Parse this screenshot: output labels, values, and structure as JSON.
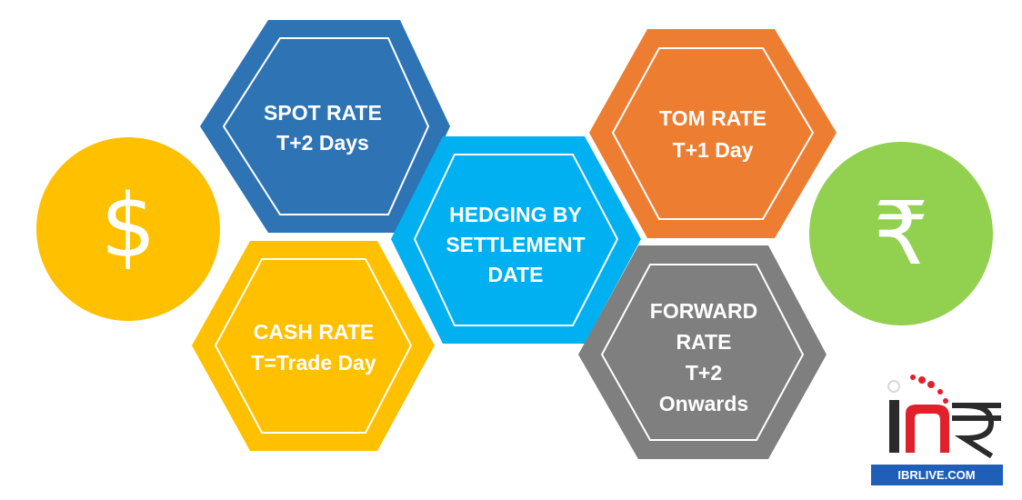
{
  "colors": {
    "spot": "#2E74B5",
    "tom": "#ED7D31",
    "center": "#00B0F0",
    "cash": "#FFC000",
    "forward": "#7F7F7F",
    "dollar_circle": "#FFC000",
    "rupee_circle": "#92D050",
    "logo_blue": "#1F5FB8",
    "logo_red": "#E0202A"
  },
  "icons": {
    "dollar": "dollar-icon",
    "rupee": "rupee-icon"
  },
  "symbols": {
    "dollar": "$",
    "rupee": "₹"
  },
  "hexagons": {
    "spot": {
      "lines": [
        "SPOT RATE",
        "T+2 Days"
      ]
    },
    "tom": {
      "lines": [
        "TOM RATE",
        "T+1 Day"
      ]
    },
    "center": {
      "lines": [
        "HEDGING BY",
        "SETTLEMENT",
        "DATE"
      ]
    },
    "cash": {
      "lines": [
        "CASH RATE",
        "T=Trade Day"
      ]
    },
    "forward": {
      "lines": [
        "FORWARD",
        "RATE",
        "T+2",
        "Onwards"
      ]
    }
  },
  "logo": {
    "caption": "IBRLIVE.COM"
  }
}
